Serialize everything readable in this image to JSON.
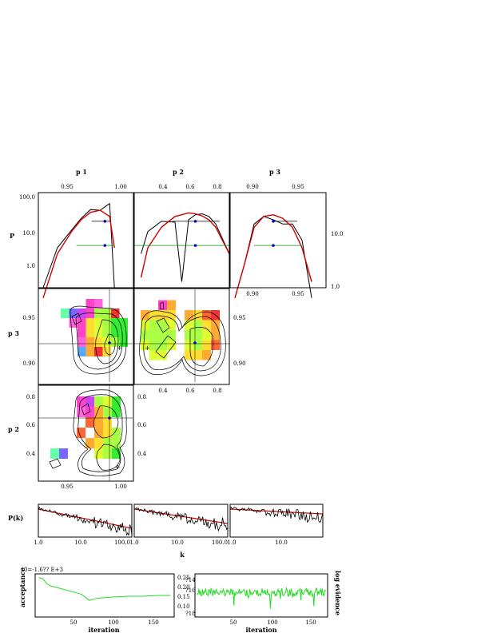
{
  "chart_data": [
    {
      "type": "heatmap",
      "panel": "corner-plot",
      "title": "",
      "params": [
        "p 1",
        "p 2",
        "p 3"
      ],
      "top_axis_labels": [
        "p 1",
        "p 2",
        "p 3"
      ],
      "ranges": {
        "p1": [
          0.92,
          1.02
        ],
        "p2": [
          0.2,
          0.9
        ],
        "p3": [
          0.88,
          0.98
        ]
      },
      "ticks": {
        "p1": [
          "0.95",
          "1.00"
        ],
        "p2": [
          "0.4",
          "0.6",
          "0.8"
        ],
        "p3": [
          "0.90",
          "0.95"
        ],
        "p1_hist_left": [
          "1.0",
          "10.0",
          "100.0"
        ],
        "p3_hist_right": [
          "1.0",
          "10.0"
        ]
      },
      "hist_ylabel": "P",
      "marginals": {
        "p1": {
          "x": [
            0.925,
            0.94,
            0.955,
            0.965,
            0.975,
            0.985,
            0.995,
            1.0
          ],
          "hist": [
            0.2,
            3.0,
            10.0,
            22.0,
            40.0,
            38.0,
            60.0,
            0.2
          ],
          "fit": [
            0.1,
            2.0,
            9.0,
            20.0,
            33.0,
            38.0,
            25.0,
            3.0
          ],
          "best": 0.99,
          "errbar": [
            0.96,
            1.0
          ]
        },
        "p2": {
          "x": [
            0.25,
            0.3,
            0.4,
            0.5,
            0.55,
            0.6,
            0.65,
            0.7,
            0.75,
            0.8,
            0.9
          ],
          "hist": [
            2.0,
            9.0,
            18.0,
            17.0,
            0.3,
            20.0,
            28.0,
            30.0,
            25.0,
            15.0,
            2.0
          ],
          "fit": [
            0.4,
            3.0,
            12.0,
            25.0,
            28.0,
            32.0,
            30.0,
            26.0,
            20.0,
            12.0,
            2.0
          ],
          "best": 0.65,
          "errbar": [
            0.2,
            0.9
          ]
        },
        "p3": {
          "x": [
            0.885,
            0.895,
            0.905,
            0.915,
            0.925,
            0.935,
            0.945,
            0.955,
            0.965
          ],
          "hist": [
            0.1,
            1.0,
            15.0,
            25.0,
            20.0,
            15.0,
            15.0,
            5.0,
            0.1
          ],
          "fit": [
            0.1,
            1.0,
            12.0,
            25.0,
            28.0,
            22.0,
            12.0,
            3.0,
            0.3
          ],
          "best": 0.925,
          "errbar": [
            0.905,
            0.955
          ]
        }
      }
    },
    {
      "type": "line",
      "panel": "power-spectrum",
      "ylabel": "P(k)",
      "xlabel": "k",
      "subpanels": [
        {
          "xticks": [
            "1.0",
            "10.0",
            "100.0"
          ]
        },
        {
          "xticks": [
            "1.0",
            "10.0",
            "100.0"
          ]
        },
        {
          "xticks": [
            "1.0",
            "10.0"
          ]
        }
      ]
    },
    {
      "type": "line",
      "panel": "acceptance",
      "ylabel": "acceptance",
      "xlabel": "iteration",
      "annotation": "y0=-1.6?? E+3",
      "xlim": [
        0,
        180
      ],
      "xticks": [
        "50",
        "100",
        "150"
      ],
      "series": [
        {
          "x": [
            5,
            10,
            15,
            20,
            30,
            40,
            50,
            60,
            70,
            80,
            100,
            120,
            140,
            160,
            175
          ],
          "values": [
            0.95,
            0.92,
            0.8,
            0.75,
            0.7,
            0.65,
            0.6,
            0.55,
            0.4,
            0.45,
            0.48,
            0.5,
            0.5,
            0.52,
            0.52
          ]
        }
      ]
    },
    {
      "type": "line",
      "panel": "log-evidence",
      "ylabel": "log evidence",
      "xlabel": "iteration",
      "ytick_labels": [
        "0.25",
        "0.20",
        "0.15",
        "0.10"
      ],
      "ytick_right": [
        "?14",
        "?16",
        "?18"
      ],
      "xlim": [
        0,
        180
      ],
      "xticks": [
        "50",
        "100",
        "150"
      ]
    }
  ],
  "colors": {
    "fit": "#d00000",
    "hist": "#000000",
    "errbar": "#009900",
    "best": "#0000cc",
    "chain": "#22dd22"
  }
}
